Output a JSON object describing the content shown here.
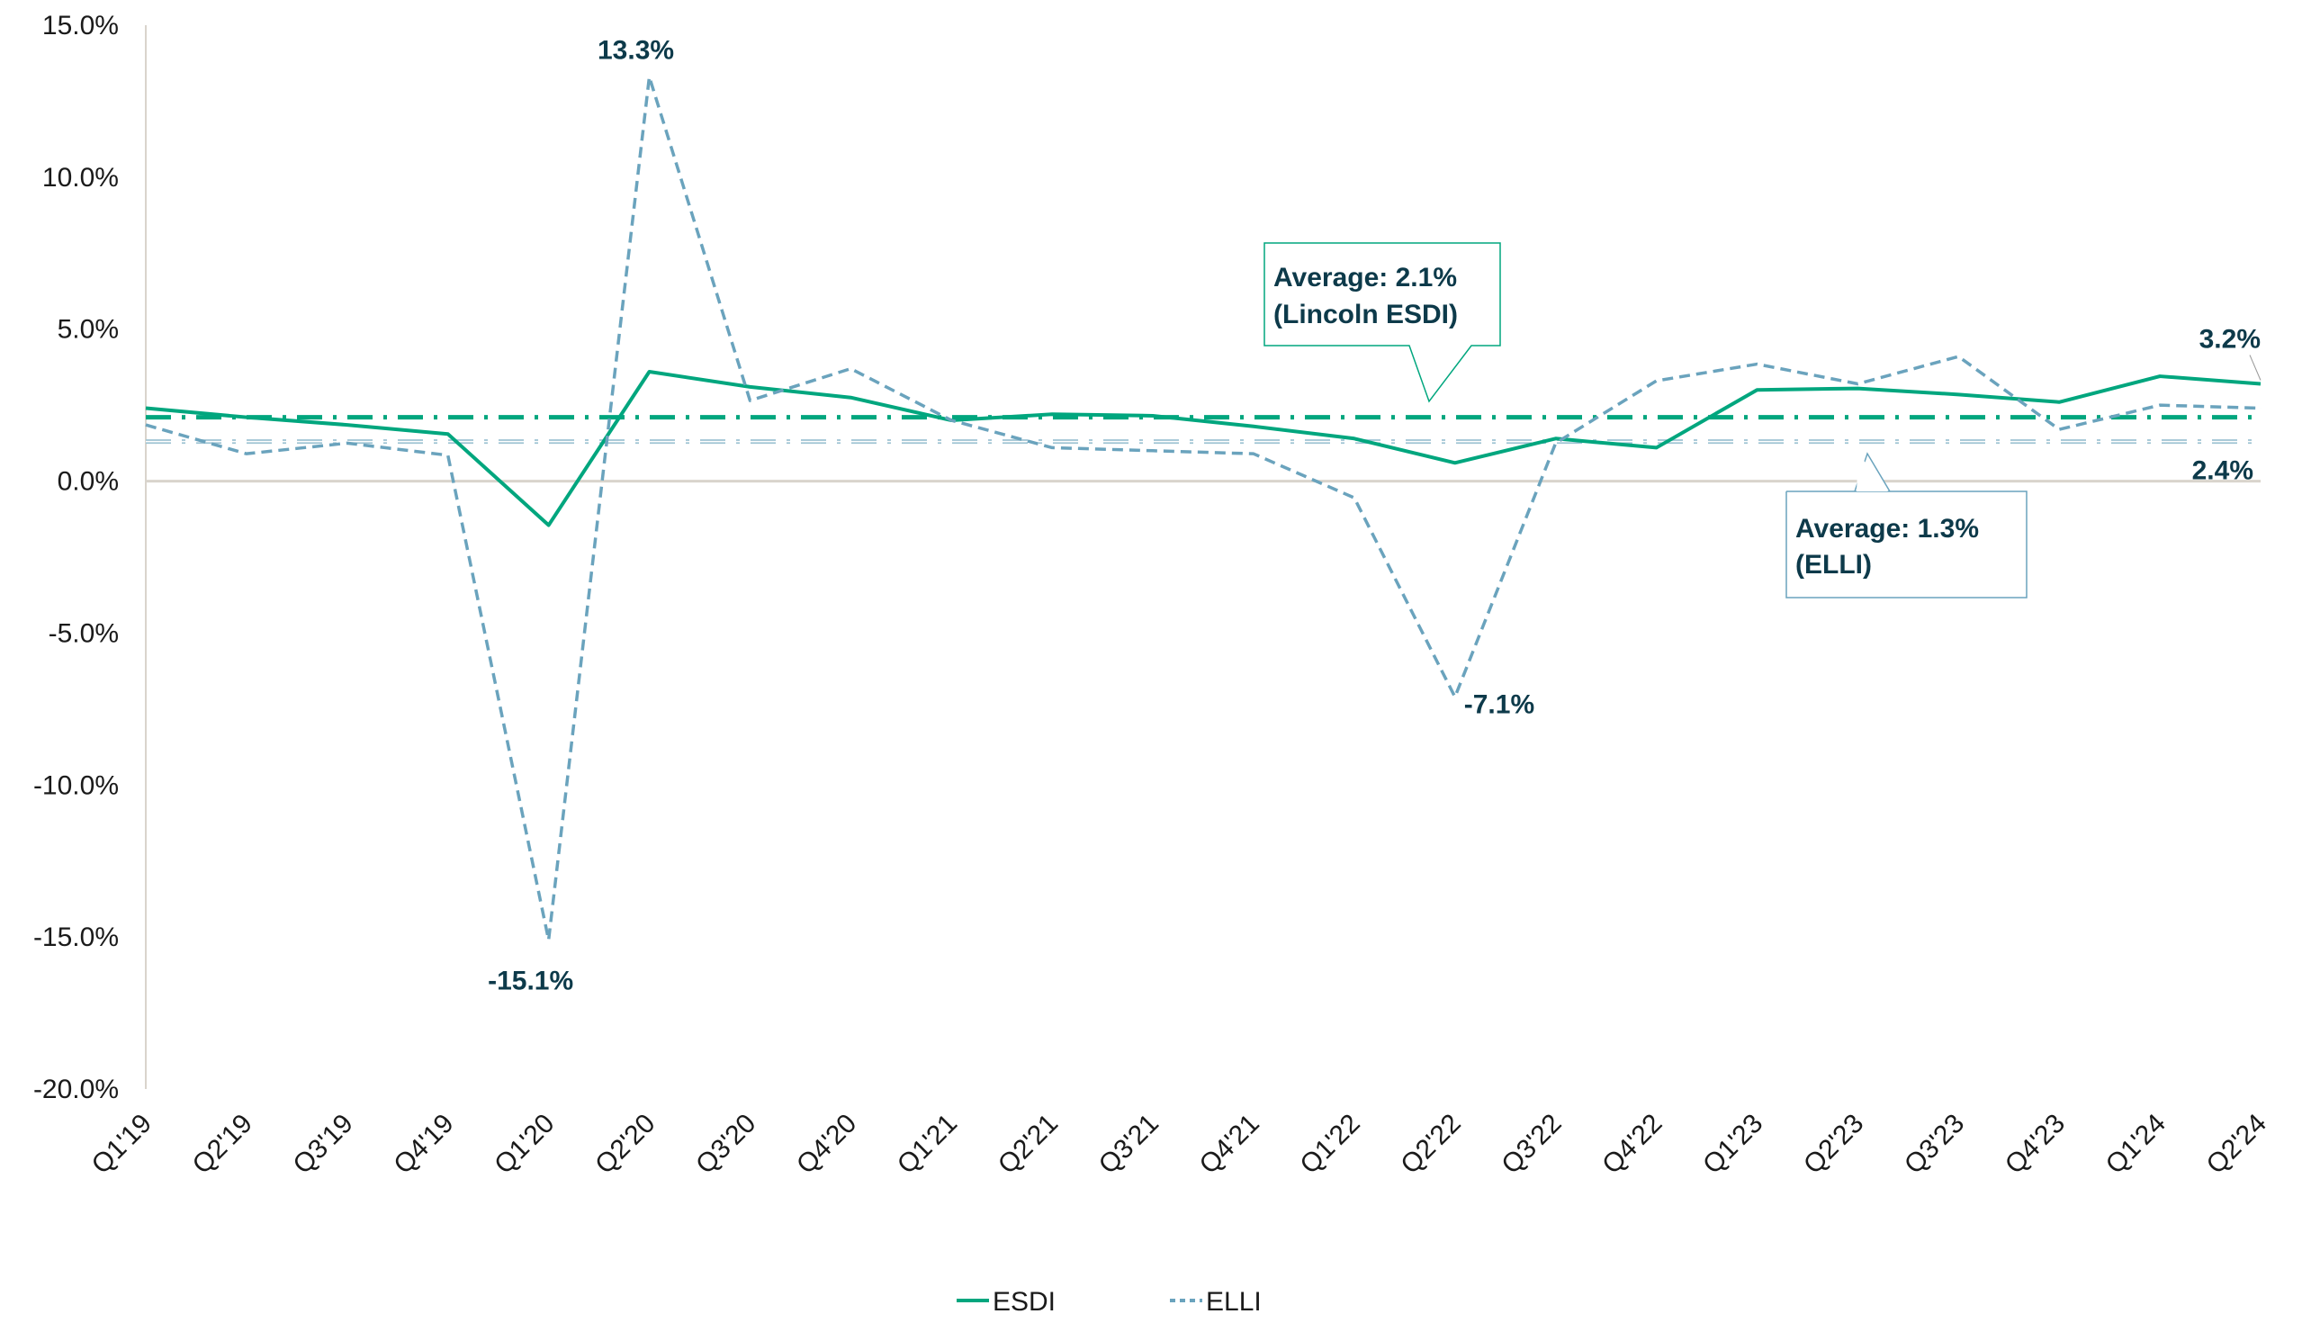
{
  "chart_data": {
    "type": "line",
    "title": "",
    "xlabel": "",
    "ylabel": "",
    "ylim": [
      -20,
      15
    ],
    "yticks": [
      "15.0%",
      "10.0%",
      "5.0%",
      "0.0%",
      "-5.0%",
      "-10.0%",
      "-15.0%",
      "-20.0%"
    ],
    "ytick_values": [
      15,
      10,
      5,
      0,
      -5,
      -10,
      -15,
      -20
    ],
    "categories": [
      "Q1'19",
      "Q2'19",
      "Q3'19",
      "Q4'19",
      "Q1'20",
      "Q2'20",
      "Q3'20",
      "Q4'20",
      "Q1'21",
      "Q2'21",
      "Q3'21",
      "Q4'21",
      "Q1'22",
      "Q2'22",
      "Q3'22",
      "Q4'22",
      "Q1'23",
      "Q2'23",
      "Q3'23",
      "Q4'23",
      "Q1'24",
      "Q2'24"
    ],
    "series": [
      {
        "name": "ESDI",
        "color": "#00a67e",
        "style": "solid",
        "values": [
          2.4,
          2.1,
          1.85,
          1.55,
          -1.45,
          3.6,
          3.1,
          2.75,
          2.0,
          2.2,
          2.15,
          1.8,
          1.4,
          0.6,
          1.4,
          1.1,
          3.0,
          3.05,
          2.85,
          2.6,
          3.45,
          3.2
        ]
      },
      {
        "name": "ELLI",
        "color": "#6aa3bd",
        "style": "dashed",
        "values": [
          1.85,
          0.9,
          1.25,
          0.85,
          -15.1,
          13.3,
          2.65,
          3.7,
          2.0,
          1.1,
          1.0,
          0.9,
          -0.55,
          -7.1,
          1.25,
          3.3,
          3.85,
          3.2,
          4.1,
          1.7,
          2.5,
          2.4
        ]
      }
    ],
    "averages": [
      {
        "series": "ESDI",
        "value": 2.1,
        "color": "#00a67e",
        "label_line1": "Average: 2.1%",
        "label_line2": "(Lincoln ESDI)"
      },
      {
        "series": "ELLI",
        "value": 1.3,
        "color": "#9ec3d3",
        "label_line1": "Average: 1.3%",
        "label_line2": "(ELLI)"
      }
    ],
    "data_labels": [
      {
        "series": "ELLI",
        "index": 5,
        "text": "13.3%"
      },
      {
        "series": "ELLI",
        "index": 4,
        "text": "-15.1%"
      },
      {
        "series": "ELLI",
        "index": 13,
        "text": "-7.1%"
      },
      {
        "series": "ESDI",
        "index": 21,
        "text": "3.2%"
      },
      {
        "series": "ELLI",
        "index": 21,
        "text": "2.4%"
      }
    ],
    "legend": {
      "placement": "bottom-center",
      "entries": [
        "ESDI",
        "ELLI"
      ]
    },
    "grid": false
  }
}
